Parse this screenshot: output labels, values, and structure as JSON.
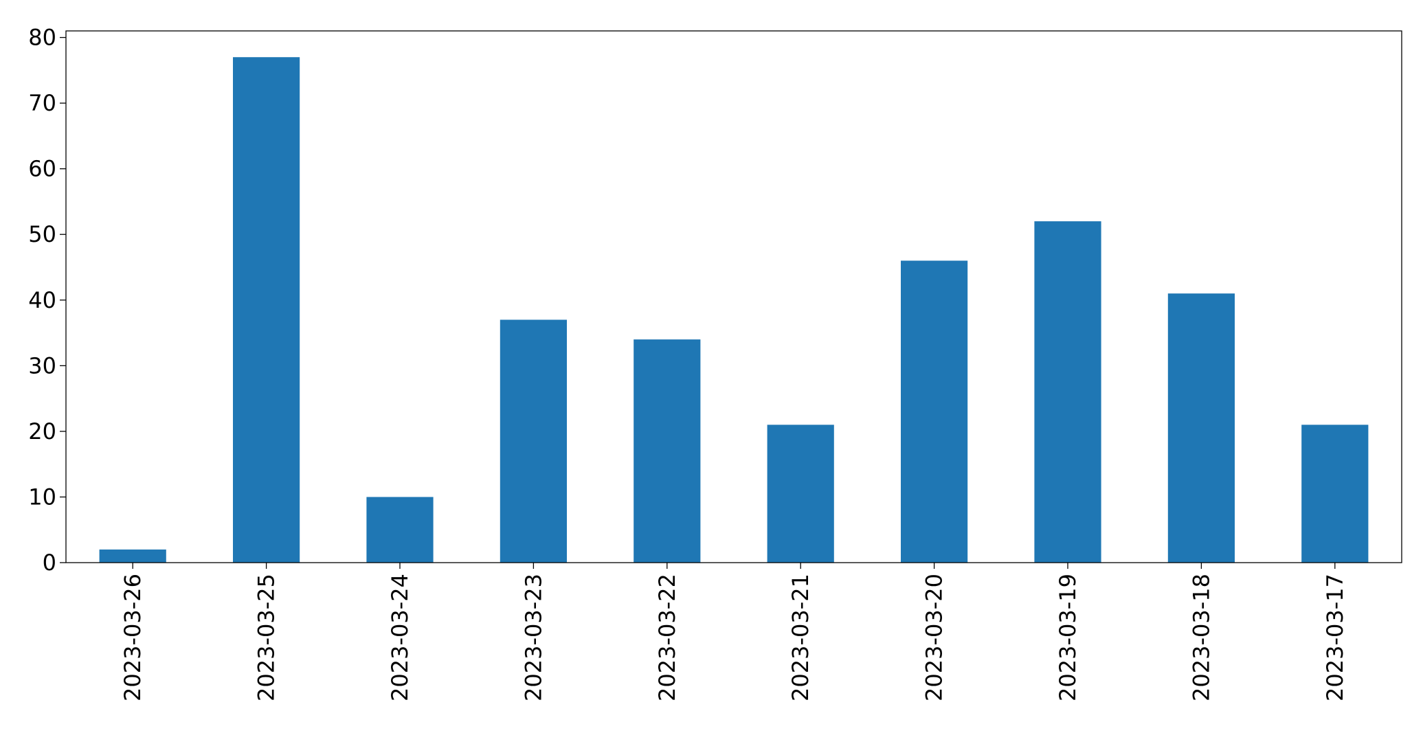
{
  "chart_data": {
    "type": "bar",
    "categories": [
      "2023-03-26",
      "2023-03-25",
      "2023-03-24",
      "2023-03-23",
      "2023-03-22",
      "2023-03-21",
      "2023-03-20",
      "2023-03-19",
      "2023-03-18",
      "2023-03-17"
    ],
    "values": [
      2,
      77,
      10,
      37,
      34,
      21,
      46,
      52,
      41,
      21
    ],
    "color": "#1f77b4",
    "ylim": [
      0,
      81
    ],
    "yticks": [
      0,
      10,
      20,
      30,
      40,
      50,
      60,
      70,
      80
    ],
    "grid": false
  }
}
